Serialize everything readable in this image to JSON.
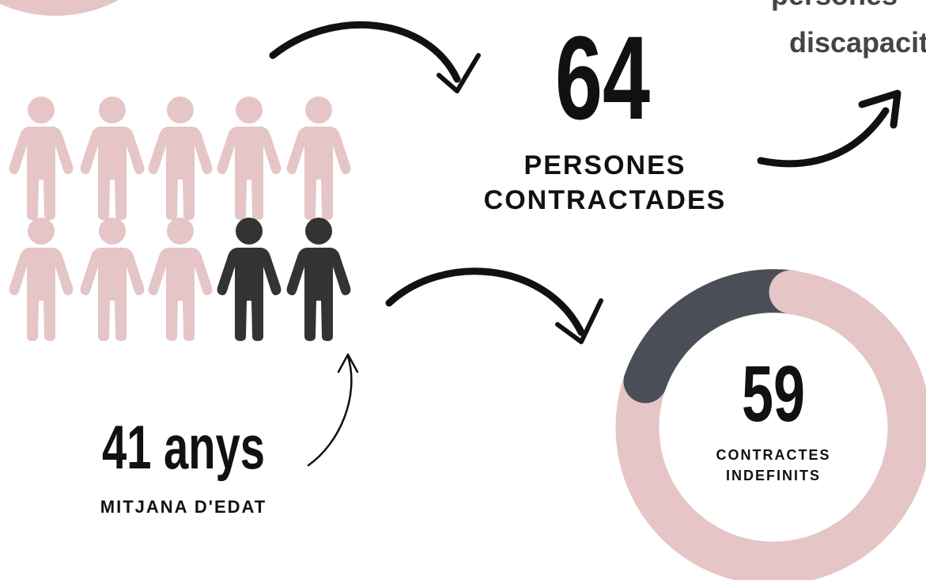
{
  "hired": {
    "number": "64",
    "label_lines": [
      "PERSONES",
      "CONTRACTADES"
    ]
  },
  "disability": {
    "label_lines": [
      "persones",
      "discapacitat"
    ]
  },
  "age": {
    "number": "41 anys",
    "label": "MITJANA D'EDAT"
  },
  "contracts": {
    "number": "59",
    "label_lines": [
      "CONTRACTES",
      "INDEFINITS"
    ]
  }
}
